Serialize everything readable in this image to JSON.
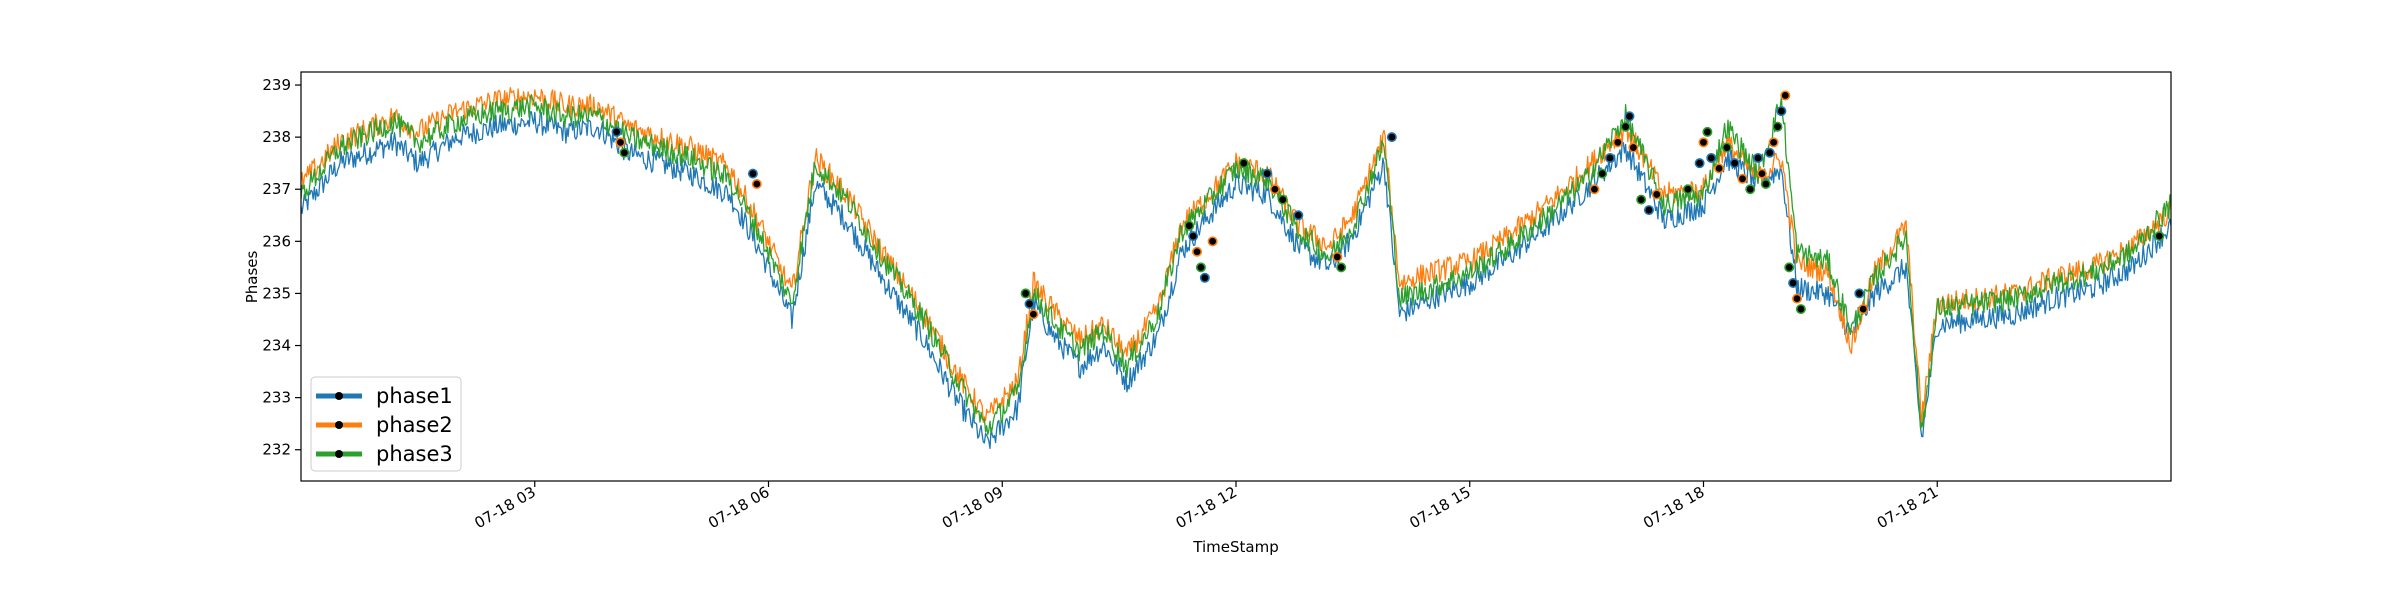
{
  "chart_data": {
    "type": "line",
    "title": "",
    "xlabel": "TimeStamp",
    "ylabel": "Phases",
    "xlim": [
      "2023-07-18 00:00",
      "2023-07-19 00:00"
    ],
    "ylim": [
      231.4,
      239.25
    ],
    "grid": false,
    "legend_position": "lower-left",
    "x_ticks": [
      {
        "hour": 3,
        "label": "07-18 03"
      },
      {
        "hour": 6,
        "label": "07-18 06"
      },
      {
        "hour": 9,
        "label": "07-18 09"
      },
      {
        "hour": 12,
        "label": "07-18 12"
      },
      {
        "hour": 15,
        "label": "07-18 15"
      },
      {
        "hour": 18,
        "label": "07-18 18"
      },
      {
        "hour": 21,
        "label": "07-18 21"
      }
    ],
    "y_ticks": [
      232,
      233,
      234,
      235,
      236,
      237,
      238,
      239
    ],
    "series": [
      {
        "name": "phase1",
        "color": "#1f77b4",
        "x_hours": [
          0,
          0.5,
          1.2,
          1.5,
          2,
          2.5,
          3,
          3.4,
          3.8,
          4.2,
          5,
          5.5,
          5.9,
          6.3,
          6.6,
          7,
          7.5,
          8,
          8.4,
          8.8,
          9.2,
          9.4,
          9.7,
          10,
          10.3,
          10.6,
          11,
          11.3,
          11.6,
          12,
          12.4,
          12.8,
          13.2,
          13.5,
          13.9,
          14.1,
          14.5,
          15,
          15.5,
          16,
          16.5,
          17,
          17.5,
          18,
          18.3,
          18.7,
          19,
          19.2,
          19.6,
          19.9,
          20.2,
          20.6,
          20.8,
          21,
          21.5,
          22,
          22.5,
          23,
          23.5,
          24
        ],
        "values": [
          236.6,
          237.5,
          237.9,
          237.5,
          238.0,
          238.2,
          238.3,
          238.1,
          238.2,
          237.7,
          237.3,
          236.9,
          235.8,
          234.5,
          237.1,
          236.4,
          235.2,
          234.1,
          233.0,
          232.1,
          232.8,
          234.8,
          234.1,
          233.6,
          234.0,
          233.3,
          234.2,
          235.8,
          236.4,
          237.1,
          236.9,
          235.9,
          235.5,
          236.1,
          237.5,
          234.6,
          234.9,
          235.2,
          235.7,
          236.3,
          237.0,
          237.8,
          236.4,
          236.7,
          237.6,
          237.1,
          237.4,
          235.1,
          235.0,
          234.2,
          235.0,
          235.5,
          232.2,
          234.4,
          234.5,
          234.6,
          234.9,
          235.1,
          235.5,
          236.3
        ]
      },
      {
        "name": "phase2",
        "color": "#ff7f0e",
        "x_hours": [
          0,
          0.5,
          1.2,
          1.5,
          2,
          2.5,
          3,
          3.4,
          3.8,
          4.2,
          5,
          5.5,
          5.9,
          6.3,
          6.6,
          7,
          7.5,
          8,
          8.4,
          8.8,
          9.2,
          9.4,
          9.7,
          10,
          10.3,
          10.6,
          11,
          11.3,
          11.6,
          12,
          12.4,
          12.8,
          13.2,
          13.5,
          13.9,
          14.1,
          14.5,
          15,
          15.5,
          16,
          16.5,
          17,
          17.5,
          18,
          18.3,
          18.7,
          19,
          19.2,
          19.6,
          19.9,
          20.2,
          20.6,
          20.8,
          21,
          21.5,
          22,
          22.5,
          23,
          23.5,
          24
        ],
        "values": [
          237.1,
          237.9,
          238.4,
          238.1,
          238.5,
          238.7,
          238.8,
          238.6,
          238.6,
          238.2,
          237.8,
          237.4,
          236.3,
          235.0,
          237.6,
          236.9,
          235.7,
          234.6,
          233.5,
          232.6,
          233.3,
          235.2,
          234.6,
          234.1,
          234.4,
          233.8,
          234.7,
          236.3,
          236.8,
          237.5,
          237.3,
          236.3,
          235.9,
          236.5,
          238.0,
          235.2,
          235.4,
          235.6,
          236.1,
          236.7,
          237.4,
          238.2,
          236.9,
          237.0,
          237.9,
          237.2,
          237.6,
          235.6,
          235.4,
          234.0,
          235.4,
          236.3,
          232.6,
          234.8,
          234.9,
          235.0,
          235.3,
          235.5,
          235.9,
          236.6
        ]
      },
      {
        "name": "phase3",
        "color": "#2ca02c",
        "x_hours": [
          0,
          0.5,
          1.2,
          1.5,
          2,
          2.5,
          3,
          3.4,
          3.8,
          4.2,
          5,
          5.5,
          5.9,
          6.3,
          6.6,
          7,
          7.5,
          8,
          8.4,
          8.8,
          9.2,
          9.4,
          9.7,
          10,
          10.3,
          10.6,
          11,
          11.3,
          11.6,
          12,
          12.4,
          12.8,
          13.2,
          13.5,
          13.9,
          14.1,
          14.5,
          15,
          15.5,
          16,
          16.5,
          17,
          17.5,
          18,
          18.3,
          18.7,
          19,
          19.2,
          19.6,
          19.9,
          20.2,
          20.6,
          20.8,
          21,
          21.5,
          22,
          22.5,
          23,
          23.5,
          24
        ],
        "values": [
          236.9,
          237.8,
          238.3,
          237.9,
          238.3,
          238.5,
          238.6,
          238.4,
          238.4,
          238.0,
          237.6,
          237.2,
          236.1,
          234.8,
          237.5,
          236.8,
          235.6,
          234.5,
          233.4,
          232.4,
          233.1,
          235.0,
          234.4,
          233.9,
          234.3,
          233.6,
          234.6,
          236.2,
          236.7,
          237.4,
          237.2,
          236.2,
          235.7,
          236.3,
          237.9,
          234.9,
          235.1,
          235.4,
          235.9,
          236.5,
          237.2,
          238.4,
          236.7,
          236.9,
          238.2,
          237.3,
          238.7,
          235.8,
          235.6,
          234.3,
          235.3,
          236.1,
          232.3,
          234.7,
          234.8,
          234.9,
          235.2,
          235.4,
          235.8,
          236.7
        ]
      }
    ],
    "anomaly_markers": {
      "color": "#000000",
      "x_hours": [
        4.05,
        4.1,
        4.15,
        5.8,
        5.85,
        9.3,
        9.35,
        9.4,
        11.4,
        11.45,
        11.5,
        11.55,
        11.6,
        11.7,
        12.1,
        12.4,
        12.5,
        12.6,
        12.8,
        13.3,
        13.35,
        14.0,
        16.6,
        16.7,
        16.8,
        16.9,
        17.0,
        17.05,
        17.1,
        17.2,
        17.3,
        17.4,
        17.8,
        17.95,
        18.0,
        18.05,
        18.1,
        18.2,
        18.3,
        18.4,
        18.5,
        18.6,
        18.7,
        18.75,
        18.8,
        18.85,
        18.9,
        18.95,
        19.0,
        19.05,
        19.1,
        19.15,
        19.2,
        19.25,
        20.0,
        20.05,
        23.85
      ],
      "values": [
        238.1,
        237.9,
        237.7,
        237.3,
        237.1,
        235.0,
        234.8,
        234.6,
        236.3,
        236.1,
        235.8,
        235.5,
        235.3,
        236.0,
        237.5,
        237.3,
        237.0,
        236.8,
        236.5,
        235.7,
        235.5,
        238.0,
        237.0,
        237.3,
        237.6,
        237.9,
        238.2,
        238.4,
        237.8,
        236.8,
        236.6,
        236.9,
        237.0,
        237.5,
        237.9,
        238.1,
        237.6,
        237.4,
        237.8,
        237.5,
        237.2,
        237.0,
        237.6,
        237.3,
        237.1,
        237.7,
        237.9,
        238.2,
        238.5,
        238.8,
        235.5,
        235.2,
        234.9,
        234.7,
        235.0,
        234.7,
        236.1
      ]
    }
  }
}
